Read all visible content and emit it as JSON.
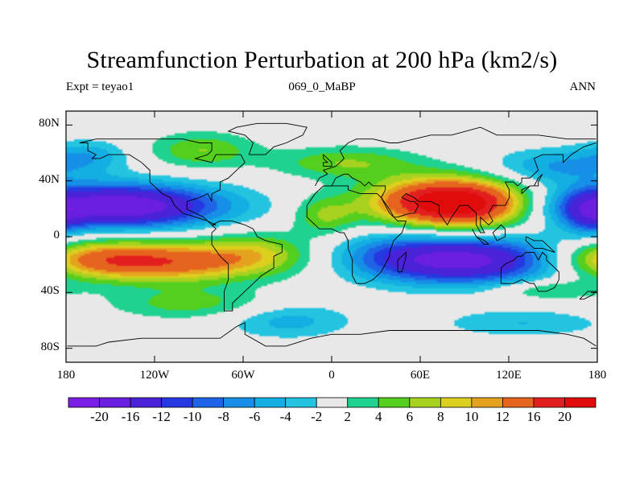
{
  "chart_data": {
    "type": "heatmap",
    "title": "Streamfunction Perturbation at 200 hPa (km2/s)",
    "left_string": "Expt = teyao1",
    "center_string": "069_0_MaBP",
    "right_string": "ANN",
    "x_ticks": [
      "180",
      "120W",
      "60W",
      "0",
      "60E",
      "120E",
      "180"
    ],
    "x_range": [
      -180,
      180
    ],
    "y_ticks": [
      "80N",
      "40N",
      "0",
      "40S",
      "80S"
    ],
    "y_range": [
      -90,
      90
    ],
    "colorbar": {
      "levels": [
        "-20",
        "-16",
        "-12",
        "-10",
        "-8",
        "-6",
        "-4",
        "-2",
        "2",
        "4",
        "6",
        "8",
        "10",
        "12",
        "16",
        "20"
      ],
      "level_values": [
        -20,
        -16,
        -12,
        -10,
        -8,
        -6,
        -4,
        -2,
        2,
        4,
        6,
        8,
        10,
        12,
        16,
        20
      ],
      "colors": [
        "#7a1fe6",
        "#6a1ee0",
        "#4a22d8",
        "#2638e0",
        "#1f63e6",
        "#168fe6",
        "#13aee2",
        "#22c4e0",
        "#e8e8e8",
        "#1fd28f",
        "#55cf1e",
        "#a7d21f",
        "#dccf1e",
        "#e5a21e",
        "#e6651e",
        "#e21e1e",
        "#e00b0b"
      ]
    },
    "features": [
      {
        "lon": 75,
        "lat": 25,
        "value": 20,
        "lon_sd": 35,
        "lat_sd": 12
      },
      {
        "lon": 100,
        "lat": 22,
        "value": 8,
        "lon_sd": 30,
        "lat_sd": 12
      },
      {
        "lon": -115,
        "lat": -18,
        "value": 15,
        "lon_sd": 50,
        "lat_sd": 10
      },
      {
        "lon": -165,
        "lat": -15,
        "value": 6,
        "lon_sd": 30,
        "lat_sd": 9
      },
      {
        "lon": -145,
        "lat": 22,
        "value": -20,
        "lon_sd": 50,
        "lat_sd": 11
      },
      {
        "lon": 95,
        "lat": -17,
        "value": -17,
        "lon_sd": 42,
        "lat_sd": 12
      },
      {
        "lon": 40,
        "lat": -14,
        "value": -6,
        "lon_sd": 30,
        "lat_sd": 12
      },
      {
        "lon": 150,
        "lat": 50,
        "value": -6,
        "lon_sd": 30,
        "lat_sd": 9
      },
      {
        "lon": -165,
        "lat": 58,
        "value": -5,
        "lon_sd": 20,
        "lat_sd": 8
      },
      {
        "lon": 175,
        "lat": 15,
        "value": -6,
        "lon_sd": 12,
        "lat_sd": 11
      },
      {
        "lon": -88,
        "lat": 62,
        "value": 6,
        "lon_sd": 25,
        "lat_sd": 9
      },
      {
        "lon": 10,
        "lat": 53,
        "value": 6,
        "lon_sd": 35,
        "lat_sd": 8
      },
      {
        "lon": -5,
        "lat": 15,
        "value": 6,
        "lon_sd": 15,
        "lat_sd": 10
      },
      {
        "lon": -50,
        "lat": -10,
        "value": 5,
        "lon_sd": 25,
        "lat_sd": 10
      },
      {
        "lon": -95,
        "lat": -48,
        "value": 5,
        "lon_sd": 40,
        "lat_sd": 8
      },
      {
        "lon": -30,
        "lat": -60,
        "value": -5,
        "lon_sd": 30,
        "lat_sd": 9
      },
      {
        "lon": 130,
        "lat": -62,
        "value": -4,
        "lon_sd": 40,
        "lat_sd": 7
      },
      {
        "lon": 145,
        "lat": -38,
        "value": 5,
        "lon_sd": 25,
        "lat_sd": 5
      }
    ]
  }
}
